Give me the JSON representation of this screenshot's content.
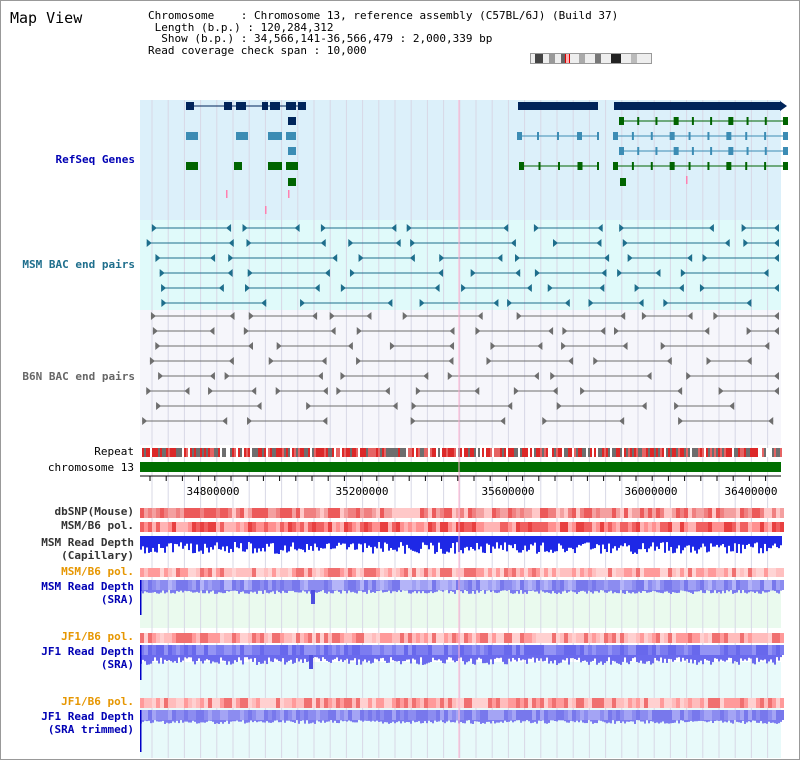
{
  "view_title": "Map View",
  "info": {
    "chromosome_label": "Chromosome",
    "chromosome_value": "Chromosome 13, reference assembly (C57BL/6J) (Build 37)",
    "length_label": "Length (b.p.)",
    "length_value": "120,284,312",
    "show_label": "Show (b.p.)",
    "show_value": "34,566,141-36,566,479 : 2,000,339 bp",
    "coverage_label": "Read coverage check span",
    "coverage_value": "10,000"
  },
  "tracks": {
    "refseq_genes": "RefSeq Genes",
    "msm_bac": "MSM BAC end pairs",
    "b6n_bac": "B6N BAC end pairs",
    "repeat": "Repeat",
    "chromosome": "chromosome 13",
    "dbsnp": "dbSNP(Mouse)",
    "msm_b6_pol_1": "MSM/B6 pol.",
    "msm_depth_cap_1": "MSM Read Depth",
    "msm_depth_cap_2": "(Capillary)",
    "msm_b6_pol_2": "MSM/B6 pol.",
    "msm_depth_sra_1": "MSM Read Depth",
    "msm_depth_sra_2": "(SRA)",
    "jf1_b6_pol_1": "JF1/B6 pol.",
    "jf1_depth_sra_1": "JF1 Read Depth",
    "jf1_depth_sra_2": "(SRA)",
    "jf1_b6_pol_2": "JF1/B6 pol.",
    "jf1_depth_trim_1": "JF1 Read Depth",
    "jf1_depth_trim_2": "(SRA trimmed)"
  },
  "axis": {
    "ticks": [
      "34800000",
      "35200000",
      "35600000",
      "36000000",
      "36400000"
    ]
  },
  "colors": {
    "refseq_bg": "#dcf0fa",
    "msm_bac_bg": "#e0fafa",
    "gene_dark": "#00245a",
    "gene_mid": "#3c8cb4",
    "gene_green": "#006400",
    "bac_teal": "#1e6e8c",
    "bac_gray": "#6e6e6e",
    "chrom_green": "#006e00",
    "sra_label": "#0000b4",
    "pol_label": "#e69600"
  }
}
